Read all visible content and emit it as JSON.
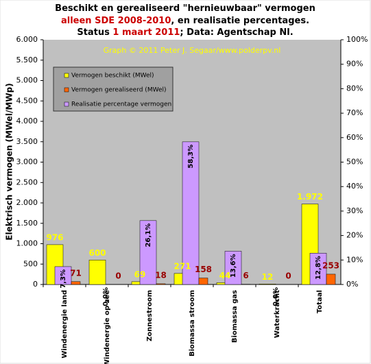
{
  "chart_data": {
    "type": "bar",
    "title_lines": [
      [
        "Beschikt en gerealiseerd \"hernieuwbaar\" vermogen"
      ],
      [
        "alleen SDE 2008-2010",
        ", en realisatie percentages."
      ],
      [
        "Status ",
        "1 maart 2011",
        "; Data: Agentschap Nl."
      ]
    ],
    "annotation": "Graph © 2011 Peter J. Segaar/www.polderpv.nl",
    "y_label": "Elektrisch vermogen (MWel/MWp)",
    "categories": [
      "Windenergie land",
      "Windenergie op zee",
      "Zonnestroom",
      "Biomassa stroom",
      "Biomassa gas",
      "Waterkracht",
      "Totaal"
    ],
    "series": [
      {
        "name": "Vermogen beschikt (MWel)",
        "color": "#ffff00",
        "values": [
          976,
          600,
          69,
          271,
          44,
          12,
          1972
        ],
        "value_labels": [
          "976",
          "600",
          "69",
          "271",
          "44",
          "12",
          "1.972"
        ]
      },
      {
        "name": "Vermogen gerealiseerd (MWel)",
        "color": "#ff6600",
        "values": [
          71,
          0,
          18,
          158,
          6,
          0,
          253
        ]
      },
      {
        "name": "Realisatie percentage vermogen",
        "color": "#cc99ff",
        "axis": "y2",
        "values": [
          7.3,
          0.0,
          26.1,
          58.3,
          13.6,
          0.0,
          12.8
        ],
        "value_labels": [
          "7,3%",
          "0,0%",
          "26,1%",
          "58,3%",
          "13,6%",
          "0,0%",
          "12,8%"
        ]
      }
    ],
    "ylim": [
      0,
      6000
    ],
    "yticks": [
      {
        "value": 0,
        "label": "0"
      },
      {
        "value": 500,
        "label": "500"
      },
      {
        "value": 1000,
        "label": "1.000"
      },
      {
        "value": 1500,
        "label": "1.500"
      },
      {
        "value": 2000,
        "label": "2.000"
      },
      {
        "value": 2500,
        "label": "2.500"
      },
      {
        "value": 3000,
        "label": "3.000"
      },
      {
        "value": 3500,
        "label": "3.500"
      },
      {
        "value": 4000,
        "label": "4.000"
      },
      {
        "value": 4500,
        "label": "4.500"
      },
      {
        "value": 5000,
        "label": "5.000"
      },
      {
        "value": 5500,
        "label": "5.500"
      },
      {
        "value": 6000,
        "label": "6.000"
      }
    ],
    "y2lim": [
      0,
      100
    ],
    "y2ticks": [
      {
        "value": 0,
        "label": "0%"
      },
      {
        "value": 10,
        "label": "10%"
      },
      {
        "value": 20,
        "label": "20%"
      },
      {
        "value": 30,
        "label": "30%"
      },
      {
        "value": 40,
        "label": "40%"
      },
      {
        "value": 50,
        "label": "50%"
      },
      {
        "value": 60,
        "label": "60%"
      },
      {
        "value": 70,
        "label": "70%"
      },
      {
        "value": 80,
        "label": "80%"
      },
      {
        "value": 90,
        "label": "90%"
      },
      {
        "value": 100,
        "label": "100%"
      }
    ],
    "legend": "upper left",
    "grid": false
  }
}
